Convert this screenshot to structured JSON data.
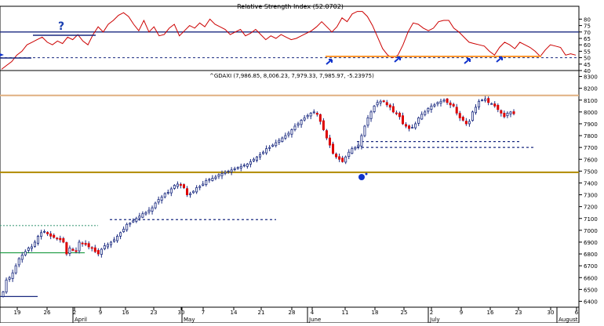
{
  "chart_data": [
    {
      "type": "line",
      "title": "Relative Strength Index (52.0702)",
      "ylim": [
        40,
        90
      ],
      "yticks": [
        40,
        45,
        50,
        55,
        60,
        65,
        70,
        75,
        80
      ],
      "ytick_labels": [
        "40",
        "45",
        "50",
        "55",
        "60",
        "65",
        "70",
        "75",
        "80"
      ],
      "reference_lines": [
        70,
        50
      ],
      "series": [
        {
          "color": "#cc0000",
          "values": [
            41,
            44,
            47,
            52,
            55,
            60,
            62,
            64,
            66,
            62,
            60,
            63,
            61,
            66,
            64,
            68,
            63,
            60,
            68,
            74,
            70,
            76,
            79,
            83,
            85,
            82,
            76,
            71,
            79,
            70,
            74,
            67,
            68,
            73,
            76,
            67,
            71,
            75,
            73,
            77,
            74,
            80,
            76,
            74,
            72,
            68,
            70,
            72,
            67,
            69,
            72,
            68,
            64,
            67,
            65,
            68,
            66,
            64,
            65,
            67,
            69,
            71,
            74,
            78,
            74,
            70,
            74,
            81,
            78,
            84,
            86,
            86,
            82,
            75,
            66,
            57,
            52,
            50,
            52,
            60,
            70,
            77,
            76,
            73,
            71,
            73,
            78,
            79,
            79,
            73,
            70,
            66,
            62,
            61,
            60,
            59,
            55,
            52,
            58,
            62,
            60,
            57,
            62,
            60,
            58,
            55,
            51,
            56,
            60,
            59,
            58,
            52,
            53,
            52
          ]
        }
      ],
      "annotations": [
        {
          "type": "hline",
          "value": 51,
          "color": "#ff9933",
          "label": ""
        },
        {
          "type": "text",
          "text": "?",
          "color": "#1a3fb0"
        }
      ]
    },
    {
      "type": "candlestick",
      "title": "^GDAXI (7,986.85, 8,006.23, 7,979.33, 7,985.97, -5.23975)",
      "ylim": [
        6350,
        8350
      ],
      "yticks": [
        6400,
        6500,
        6600,
        6700,
        6800,
        6900,
        7000,
        7100,
        7200,
        7300,
        7400,
        7500,
        7600,
        7700,
        7800,
        7900,
        8000,
        8100,
        8200,
        8300
      ],
      "ytick_labels": [
        "6400",
        "6500",
        "6600",
        "6700",
        "6800",
        "6900",
        "7000",
        "7100",
        "7200",
        "7300",
        "7400",
        "7500",
        "7600",
        "7700",
        "7800",
        "7900",
        "8000",
        "8100",
        "8200",
        "8300"
      ],
      "closes": [
        6480,
        6580,
        6600,
        6640,
        6700,
        6760,
        6790,
        6820,
        6850,
        6860,
        6900,
        6950,
        6980,
        6990,
        6970,
        6950,
        6940,
        6930,
        6920,
        6900,
        6800,
        6850,
        6830,
        6820,
        6900,
        6890,
        6880,
        6860,
        6850,
        6820,
        6800,
        6840,
        6870,
        6880,
        6900,
        6920,
        6950,
        6980,
        7010,
        7050,
        7060,
        7080,
        7100,
        7120,
        7140,
        7150,
        7170,
        7190,
        7230,
        7260,
        7280,
        7310,
        7320,
        7350,
        7380,
        7390,
        7380,
        7360,
        7300,
        7310,
        7330,
        7360,
        7370,
        7390,
        7420,
        7430,
        7440,
        7450,
        7470,
        7480,
        7490,
        7500,
        7510,
        7520,
        7530,
        7540,
        7550,
        7560,
        7580,
        7600,
        7620,
        7640,
        7660,
        7690,
        7700,
        7720,
        7740,
        7760,
        7780,
        7800,
        7820,
        7850,
        7880,
        7900,
        7930,
        7950,
        7970,
        7990,
        8000,
        7980,
        7920,
        7850,
        7780,
        7720,
        7650,
        7620,
        7600,
        7580,
        7620,
        7660,
        7690,
        7700,
        7720,
        7800,
        7880,
        7950,
        8000,
        8050,
        8080,
        8090,
        8090,
        8060,
        8040,
        8000,
        7990,
        7960,
        7900,
        7880,
        7860,
        7870,
        7900,
        7950,
        7980,
        8000,
        8030,
        8050,
        8060,
        8080,
        8090,
        8100,
        8080,
        8060,
        8050,
        7990,
        7950,
        7930,
        7900,
        7920,
        8000,
        8040,
        8090,
        8100,
        8110,
        8080,
        8070,
        8050,
        8020,
        7990,
        7960,
        7990,
        8000,
        7985
      ],
      "reference_lines": [
        {
          "value": 8140,
          "color": "#e0b080",
          "style": "solid"
        },
        {
          "value": 7490,
          "color": "#b08a00",
          "style": "solid"
        },
        {
          "value": 7750,
          "color": "#1a2a80",
          "style": "dashed"
        },
        {
          "value": 7700,
          "color": "#1a2a80",
          "style": "dashed"
        },
        {
          "value": 7090,
          "color": "#1a2a80",
          "style": "dashed"
        },
        {
          "value": 7040,
          "color": "#4aa080",
          "style": "dotted"
        },
        {
          "value": 6810,
          "color": "#1a9a40",
          "style": "solid"
        },
        {
          "value": 6440,
          "color": "#1a2a80",
          "style": "solid"
        }
      ]
    }
  ],
  "x_axis": {
    "tick_labels": [
      "19",
      "26",
      "2",
      "9",
      "16",
      "23",
      "30",
      "7",
      "14",
      "21",
      "28",
      "4",
      "11",
      "18",
      "25",
      "2",
      "9",
      "16",
      "23",
      "30",
      "6"
    ],
    "month_labels": [
      "April",
      "May",
      "June",
      "July",
      "August"
    ]
  },
  "colors": {
    "rsi_line": "#cc0000",
    "up_candle": "#ffffff",
    "down_candle": "#dd0000",
    "candle_outline": "#1a2a80",
    "axis": "#000000",
    "arrow": "#1133cc"
  }
}
